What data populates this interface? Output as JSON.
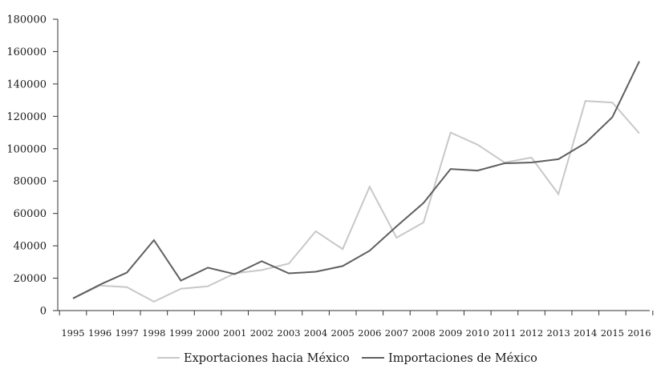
{
  "chart_data": {
    "type": "line",
    "title": "",
    "xlabel": "",
    "ylabel": "",
    "x": [
      "1995",
      "1996",
      "1997",
      "1998",
      "1999",
      "2000",
      "2001",
      "2002",
      "2003",
      "2004",
      "2005",
      "2006",
      "2007",
      "2008",
      "2009",
      "2010",
      "2011",
      "2012",
      "2013",
      "2014",
      "2015",
      "2016"
    ],
    "ylim": [
      0,
      180000
    ],
    "yticks": [
      "0",
      "20000",
      "40000",
      "60000",
      "80000",
      "100000",
      "120000",
      "140000",
      "160000",
      "180000"
    ],
    "grid": false,
    "legend_position": "bottom",
    "series": [
      {
        "name": "Exportaciones hacia México",
        "color": "#c8c8c8",
        "values": [
          7500,
          15500,
          14500,
          5500,
          13500,
          15000,
          23000,
          25000,
          29000,
          49000,
          38000,
          76500,
          45000,
          54500,
          110000,
          102500,
          91500,
          94500,
          72000,
          129500,
          128500,
          109500
        ]
      },
      {
        "name": "Importaciones de México",
        "color": "#5f5f5f",
        "values": [
          7500,
          16000,
          23500,
          43500,
          18500,
          26500,
          22500,
          30500,
          23000,
          24000,
          27500,
          37000,
          52000,
          66500,
          87500,
          86500,
          91000,
          91500,
          93500,
          103500,
          119500,
          154000
        ]
      }
    ]
  }
}
